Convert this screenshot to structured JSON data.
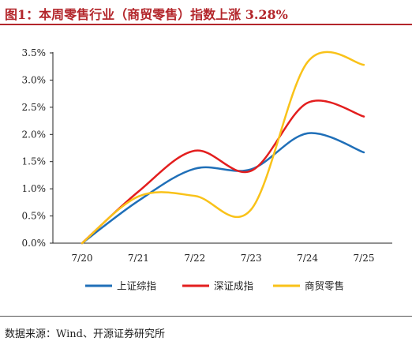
{
  "title": "图1：本周零售行业（商贸零售）指数上涨 3.28%",
  "source": "数据来源：Wind、开源证券研究所",
  "colors": {
    "accent": "#b3262b"
  },
  "chart_data": {
    "type": "line",
    "categories": [
      "7/20",
      "7/21",
      "7/22",
      "7/23",
      "7/24",
      "7/25"
    ],
    "y_ticks": [
      "0.0%",
      "0.5%",
      "1.0%",
      "1.5%",
      "2.0%",
      "2.5%",
      "3.0%",
      "3.5%"
    ],
    "ylim": [
      0,
      3.5
    ],
    "y_unit": "%",
    "grid": false,
    "legend_position": "bottom",
    "series": [
      {
        "name": "上证综指",
        "color": "#1f6fb8",
        "values": [
          0.0,
          0.78,
          1.37,
          1.36,
          2.02,
          1.67
        ]
      },
      {
        "name": "深证成指",
        "color": "#e31e1e",
        "values": [
          0.0,
          0.95,
          1.7,
          1.33,
          2.58,
          2.33
        ]
      },
      {
        "name": "商贸零售",
        "color": "#f9c219",
        "values": [
          0.0,
          0.86,
          0.87,
          0.62,
          3.33,
          3.28
        ]
      }
    ]
  }
}
